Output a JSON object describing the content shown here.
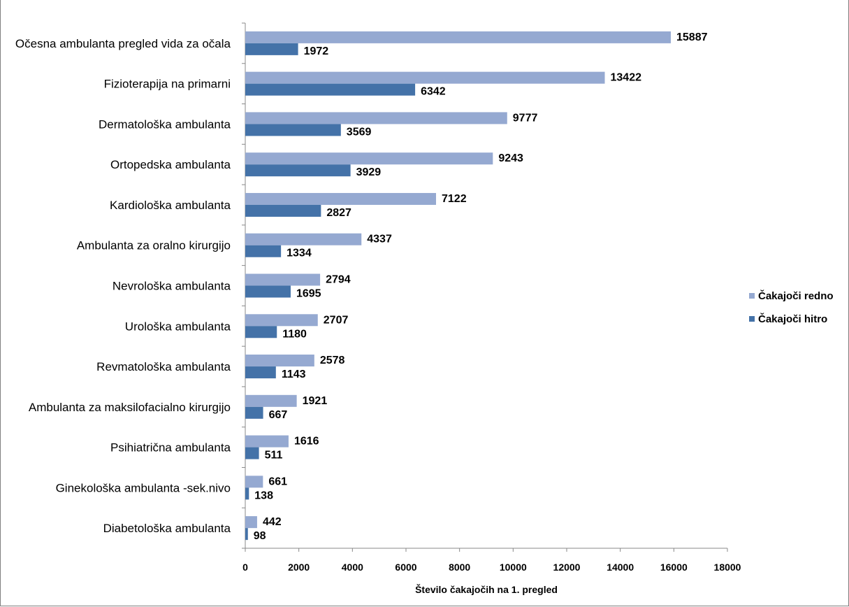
{
  "chart_data": {
    "type": "bar",
    "orientation": "horizontal",
    "title": "",
    "xlabel": "Število čakajočih na 1. pregled",
    "ylabel": "",
    "xlim": [
      0,
      18000
    ],
    "xticks": [
      "0",
      "2000",
      "4000",
      "6000",
      "8000",
      "10000",
      "12000",
      "14000",
      "16000",
      "18000"
    ],
    "grid": false,
    "legend_position": "right",
    "categories": [
      "Očesna ambulanta  pregled vida za očala",
      "Fizioterapija na primarni",
      "Dermatološka ambulanta",
      "Ortopedska ambulanta",
      "Kardiološka ambulanta",
      "Ambulanta za oralno kirurgijo",
      "Nevrološka ambulanta",
      "Urološka ambulanta",
      "Revmatološka ambulanta",
      "Ambulanta za maksilofacialno kirurgijo",
      "Psihiatrična ambulanta",
      "Ginekološka ambulanta -sek.nivo",
      "Diabetološka ambulanta"
    ],
    "series": [
      {
        "name": "Čakajoči redno",
        "color": "#95a9d1",
        "values": [
          15887,
          13422,
          9777,
          9243,
          7122,
          4337,
          2794,
          2707,
          2578,
          1921,
          1616,
          661,
          442
        ]
      },
      {
        "name": "Čakajoči hitro",
        "color": "#4472a8",
        "values": [
          1972,
          6342,
          3569,
          3929,
          2827,
          1334,
          1695,
          1180,
          1143,
          667,
          511,
          138,
          98
        ]
      }
    ]
  }
}
